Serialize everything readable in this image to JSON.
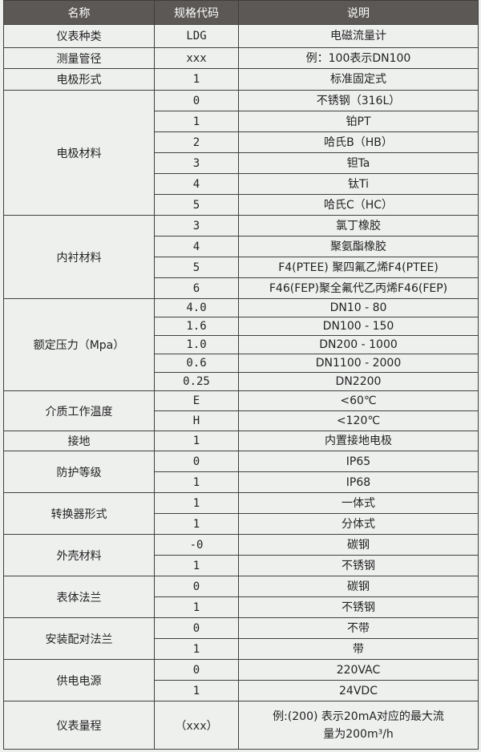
{
  "header": {
    "name": "名称",
    "code": "规格代码",
    "desc": "说明"
  },
  "groups": [
    {
      "name": "仪表种类",
      "rows": [
        {
          "code": "LDG",
          "desc": "电磁流量计"
        }
      ]
    },
    {
      "name": "测量管径",
      "rows": [
        {
          "code": "xxx",
          "desc": "例：100表示DN100"
        }
      ]
    },
    {
      "name": "电极形式",
      "rows": [
        {
          "code": "1",
          "desc": "标准固定式"
        }
      ]
    },
    {
      "name": "电极材料",
      "rows": [
        {
          "code": "0",
          "desc": "不锈钢（316L）"
        },
        {
          "code": "1",
          "desc": "铂PT"
        },
        {
          "code": "2",
          "desc": "哈氏B（HB）"
        },
        {
          "code": "3",
          "desc": "钽Ta"
        },
        {
          "code": "4",
          "desc": "钛Ti"
        },
        {
          "code": "5",
          "desc": "哈氏C（HC）"
        }
      ]
    },
    {
      "name": "内衬材料",
      "rows": [
        {
          "code": "3",
          "desc": "氯丁橡胶"
        },
        {
          "code": "4",
          "desc": "聚氨酯橡胶"
        },
        {
          "code": "5",
          "desc": "F4(PTEE) 聚四氟乙烯F4(PTEE)"
        },
        {
          "code": "6",
          "desc": "F46(FEP)聚全氟代乙丙烯F46(FEP)"
        }
      ]
    },
    {
      "name": "额定压力（Mpa）",
      "rows": [
        {
          "code": "4.0",
          "desc": "DN10 - 80"
        },
        {
          "code": "1.6",
          "desc": "DN100 - 150"
        },
        {
          "code": "1.0",
          "desc": "DN200 - 1000"
        },
        {
          "code": "0.6",
          "desc": "DN1100 - 2000"
        },
        {
          "code": "0.25",
          "desc": "DN2200"
        }
      ]
    },
    {
      "name": "介质工作温度",
      "rows": [
        {
          "code": "E",
          "desc": "<60℃"
        },
        {
          "code": "H",
          "desc": "<120℃"
        }
      ]
    },
    {
      "name": "接地",
      "rows": [
        {
          "code": "1",
          "desc": "内置接地电极"
        }
      ]
    },
    {
      "name": "防护等级",
      "rows": [
        {
          "code": "0",
          "desc": "IP65"
        },
        {
          "code": "1",
          "desc": "IP68"
        }
      ]
    },
    {
      "name": "转换器形式",
      "rows": [
        {
          "code": "1",
          "desc": "一体式"
        },
        {
          "code": "1",
          "desc": "分体式"
        }
      ]
    },
    {
      "name": "外壳材料",
      "rows": [
        {
          "code": "-0",
          "desc": "碳钢"
        },
        {
          "code": "1",
          "desc": "不锈钢"
        }
      ]
    },
    {
      "name": "表体法兰",
      "rows": [
        {
          "code": "0",
          "desc": "碳钢"
        },
        {
          "code": "1",
          "desc": "不锈钢"
        }
      ]
    },
    {
      "name": "安装配对法兰",
      "rows": [
        {
          "code": "0",
          "desc": "不带"
        },
        {
          "code": "1",
          "desc": "带"
        }
      ]
    },
    {
      "name": "供电电源",
      "rows": [
        {
          "code": "0",
          "desc": "220VAC"
        },
        {
          "code": "1",
          "desc": "24VDC"
        }
      ]
    },
    {
      "name": "仪表量程",
      "rows": [
        {
          "code": "（xxx）",
          "desc": "例:(200) 表示20mA对应的最大流量为200m³/h"
        }
      ]
    }
  ]
}
